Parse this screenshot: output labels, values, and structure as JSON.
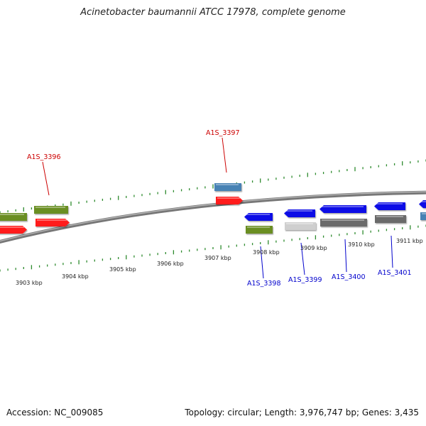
{
  "title": "Acinetobacter baumannii ATCC 17978, complete genome",
  "footer": {
    "accession": "Accession: NC_009085",
    "summary": "Topology: circular; Length: 3,976,747 bp; Genes: 3,435"
  },
  "colors": {
    "backbone": "#888888",
    "tick": "#2e8b2e",
    "label_forward": "#cc0000",
    "label_reverse": "#0000cc",
    "green_gene": "#6b8e23",
    "red_gene": "#ff1a1a",
    "steel_gene": "#4682b4",
    "blue_gene": "#0a0ae6",
    "light_gray_gene": "#cfcfcf",
    "dark_gray_gene": "#6a6a6a"
  },
  "kbp_labels": [
    "3903 kbp",
    "3904 kbp",
    "3905 kbp",
    "3906 kbp",
    "3907 kbp",
    "3908 kbp",
    "3909 kbp",
    "3910 kbp",
    "3911 kbp"
  ],
  "gene_labels": [
    {
      "name": "A1S_3396",
      "strand": "forward"
    },
    {
      "name": "A1S_3397",
      "strand": "forward"
    },
    {
      "name": "A1S_3398",
      "strand": "reverse"
    },
    {
      "name": "A1S_3399",
      "strand": "reverse"
    },
    {
      "name": "A1S_3400",
      "strand": "reverse"
    },
    {
      "name": "A1S_3401",
      "strand": "reverse"
    }
  ]
}
